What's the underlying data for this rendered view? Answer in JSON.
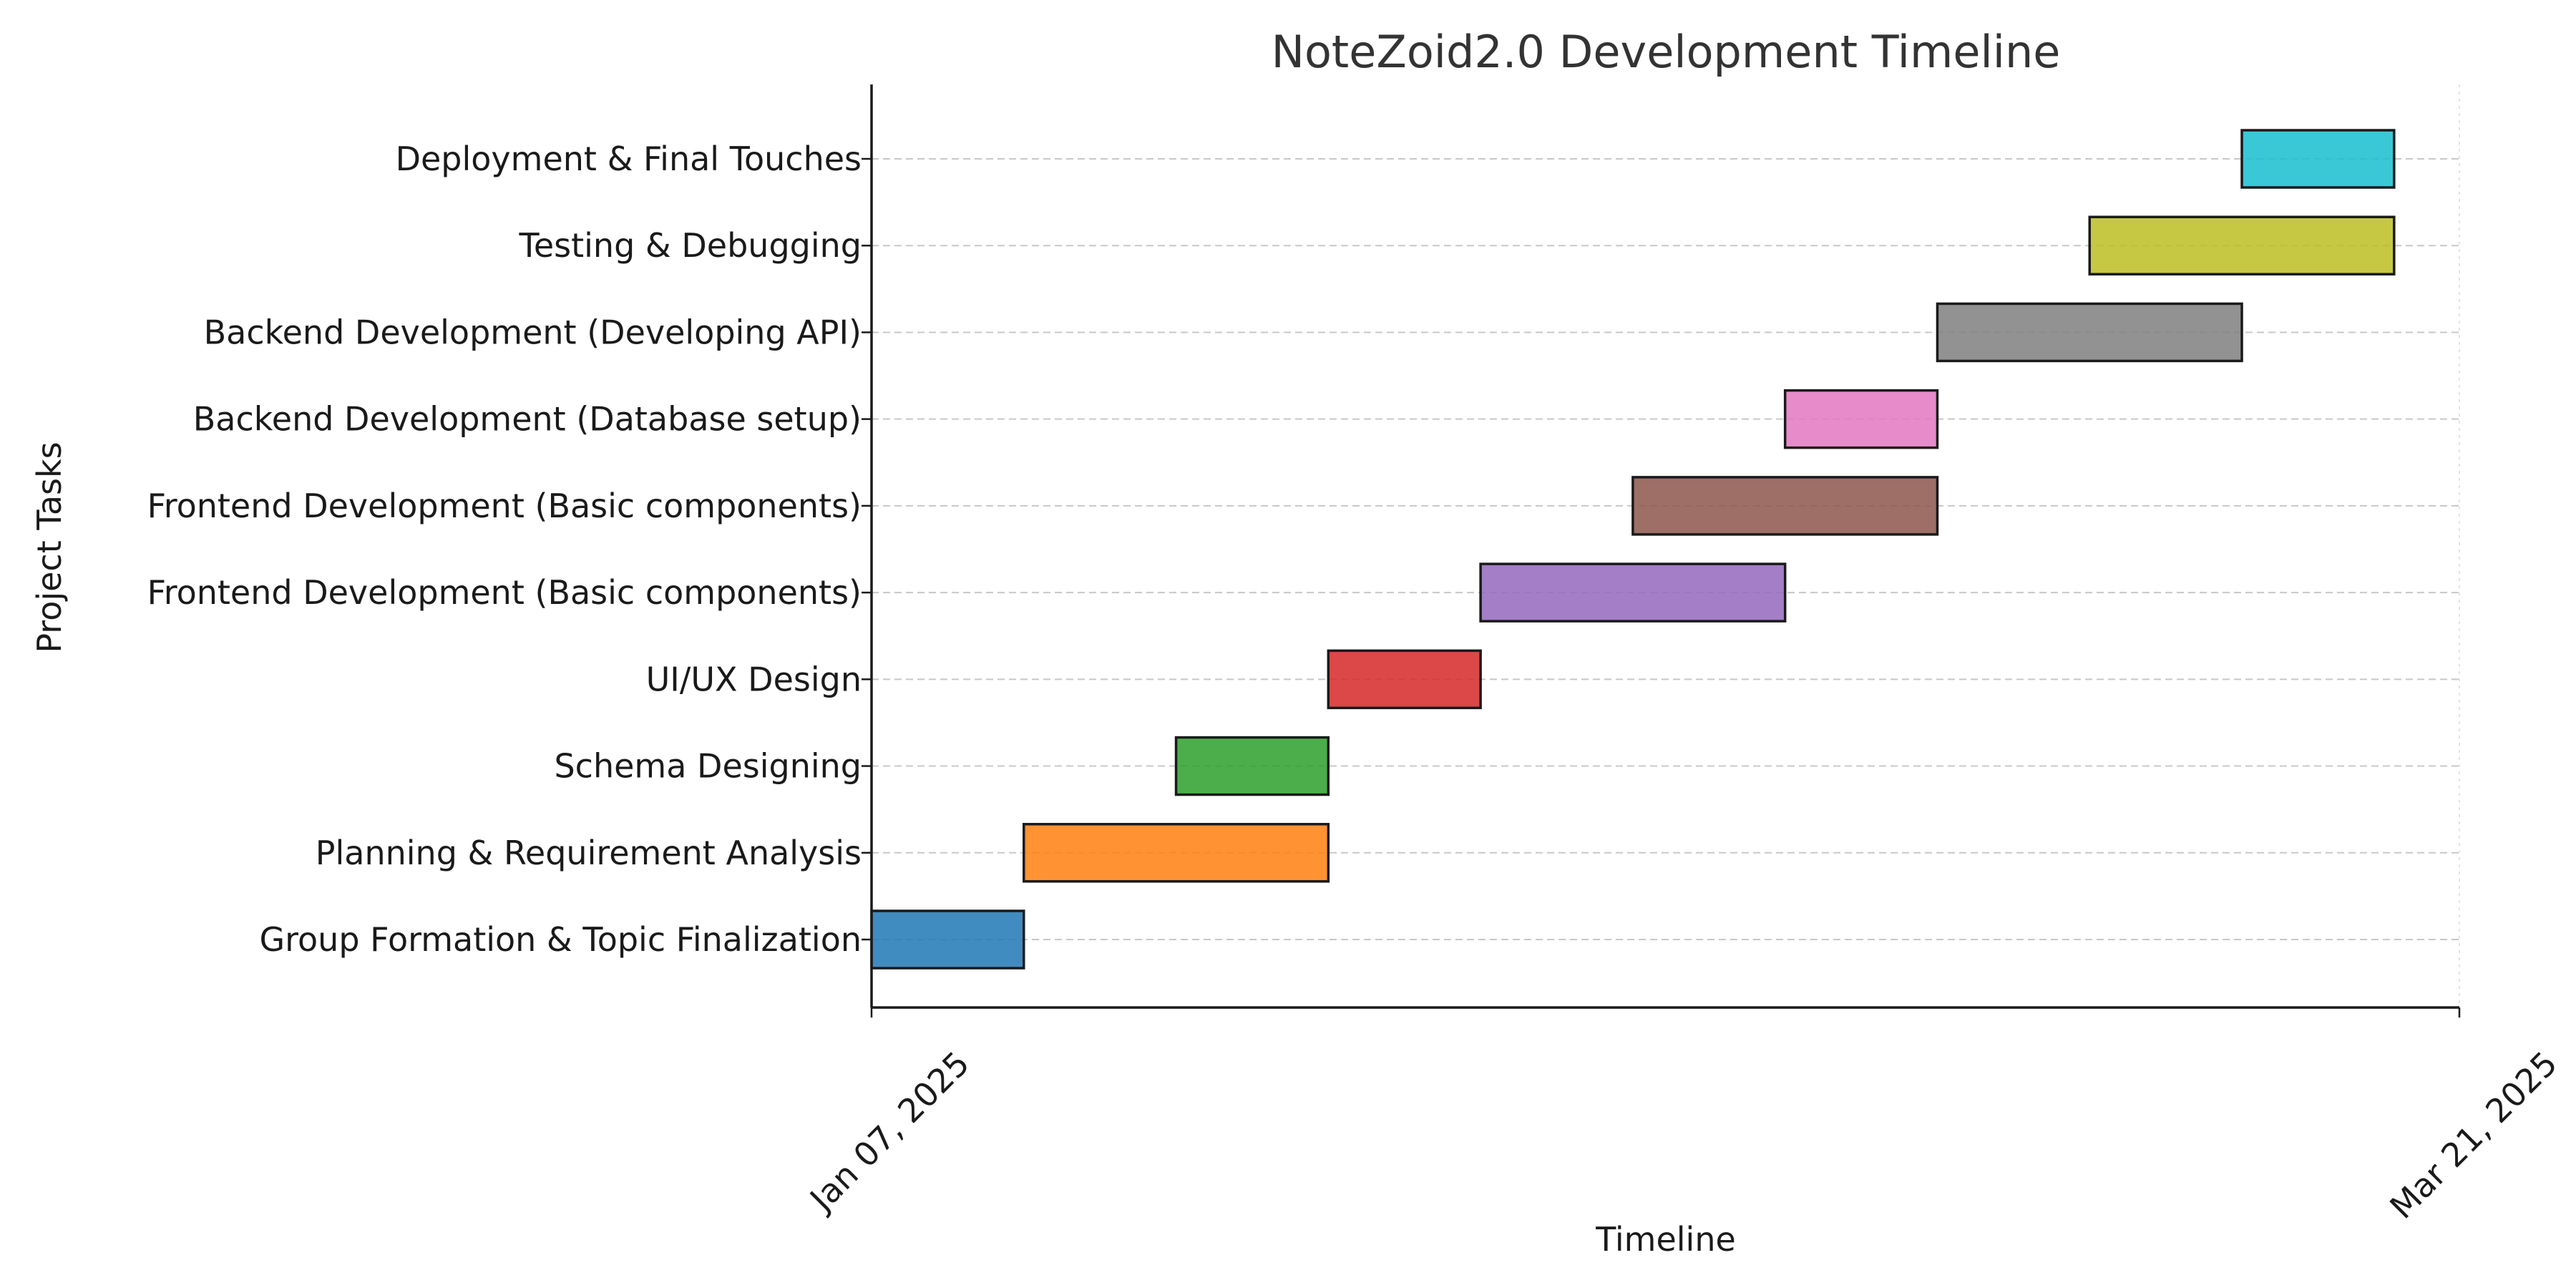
{
  "chart_data": {
    "type": "gantt",
    "title": "NoteZoid2.0 Development Timeline",
    "xlabel": "Timeline",
    "ylabel": "Project Tasks",
    "x_range": [
      "2025-01-07",
      "2025-03-21"
    ],
    "x_ticks": [
      {
        "date": "2025-01-07",
        "label": "Jan 07, 2025"
      },
      {
        "date": "2025-03-21",
        "label": "Mar 21, 2025"
      }
    ],
    "grid": "horizontal dashed",
    "tasks": [
      {
        "name": "Group Formation & Topic Finalization",
        "start": "2025-01-07",
        "end": "2025-01-14",
        "color": "#1f77b4"
      },
      {
        "name": "Planning & Requirement Analysis",
        "start": "2025-01-14",
        "end": "2025-01-28",
        "color": "#ff7f0e"
      },
      {
        "name": "Schema Designing",
        "start": "2025-01-21",
        "end": "2025-01-28",
        "color": "#2ca02c"
      },
      {
        "name": "UI/UX Design",
        "start": "2025-01-28",
        "end": "2025-02-04",
        "color": "#d62728"
      },
      {
        "name": "Frontend Development (Basic components)",
        "start": "2025-02-04",
        "end": "2025-02-18",
        "color": "#9467bd"
      },
      {
        "name": "Frontend Development (Basic components)",
        "start": "2025-02-11",
        "end": "2025-02-25",
        "color": "#8c564b"
      },
      {
        "name": "Backend Development (Database setup)",
        "start": "2025-02-18",
        "end": "2025-02-25",
        "color": "#e377c2"
      },
      {
        "name": "Backend Development (Developing API)",
        "start": "2025-02-25",
        "end": "2025-03-11",
        "color": "#7f7f7f"
      },
      {
        "name": "Testing & Debugging",
        "start": "2025-03-04",
        "end": "2025-03-18",
        "color": "#bcbd22"
      },
      {
        "name": "Deployment & Final Touches",
        "start": "2025-03-11",
        "end": "2025-03-18",
        "color": "#17becf"
      }
    ]
  }
}
